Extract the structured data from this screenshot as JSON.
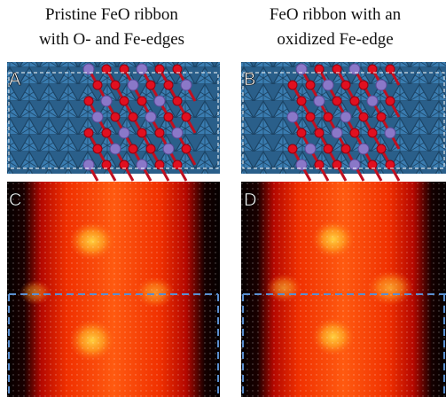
{
  "columns": [
    {
      "title_lines": [
        "Pristine FeO ribbon",
        "with O- and Fe-edges"
      ]
    },
    {
      "title_lines": [
        "FeO ribbon with an",
        "oxidized Fe-edge"
      ]
    }
  ],
  "panels": [
    {
      "label": "A"
    },
    {
      "label": "B"
    },
    {
      "label": "C"
    },
    {
      "label": "D"
    }
  ]
}
